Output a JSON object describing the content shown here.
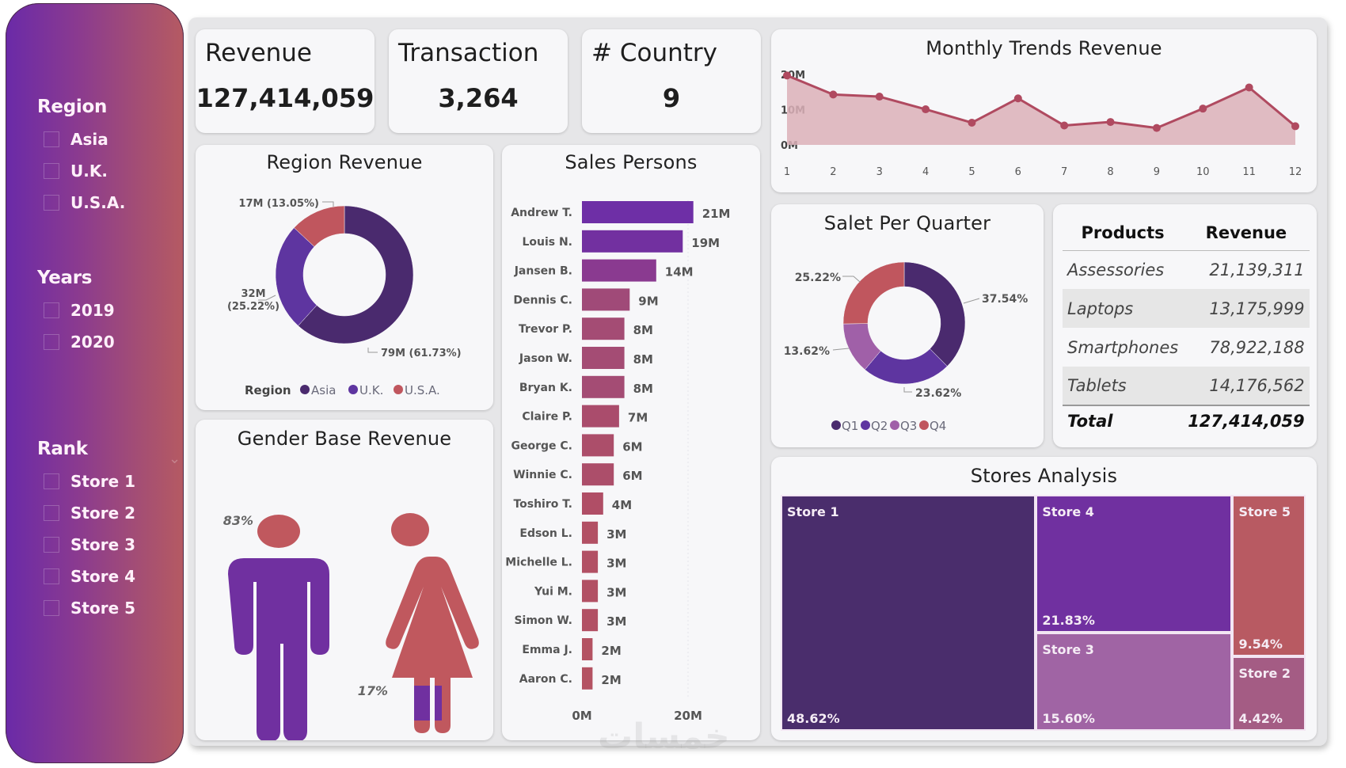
{
  "sidebar": {
    "region": {
      "title": "Region",
      "items": [
        "Asia",
        "U.K.",
        "U.S.A."
      ]
    },
    "years": {
      "title": "Years",
      "items": [
        "2019",
        "2020"
      ]
    },
    "rank": {
      "title": "Rank",
      "items": [
        "Store 1",
        "Store 2",
        "Store 3",
        "Store 4",
        "Store 5"
      ]
    }
  },
  "kpis": {
    "revenue": {
      "label": "Revenue",
      "value": "127,414,059"
    },
    "transaction": {
      "label": "Transaction",
      "value": "3,264"
    },
    "country": {
      "label": "# Country",
      "value": "9"
    }
  },
  "products_table": {
    "headers": [
      "Products",
      "Revenue"
    ],
    "rows": [
      [
        "Assessories",
        "21,139,311"
      ],
      [
        "Laptops",
        "13,175,999"
      ],
      [
        "Smartphones",
        "78,922,188"
      ],
      [
        "Tablets",
        "14,176,562"
      ]
    ],
    "total": [
      "Total",
      "127,414,059"
    ]
  },
  "colors": {
    "asia": "#4a2a6e",
    "uk": "#5e35a0",
    "usa": "#c0565e",
    "q1": "#4a2a6e",
    "q2": "#5e35a0",
    "q3": "#a060a8",
    "q4": "#c0565e",
    "line": "#b04a60",
    "area": "#dcb0b8",
    "male": "#7030a0",
    "female": "#c0585e"
  },
  "watermark": "خمسات",
  "chart_data": [
    {
      "id": "monthly",
      "type": "area",
      "title": "Monthly Trends Revenue",
      "x": [
        1,
        2,
        3,
        4,
        5,
        6,
        7,
        8,
        9,
        10,
        11,
        12
      ],
      "values": [
        19.7,
        14.3,
        13.7,
        10.1,
        6.3,
        13.2,
        5.5,
        6.5,
        4.8,
        10.3,
        16.3,
        5.3
      ],
      "unit": "M",
      "yticks": [
        "0M",
        "10M",
        "20M"
      ],
      "ylim": [
        0,
        20
      ],
      "xlabel": "",
      "ylabel": ""
    },
    {
      "id": "region",
      "type": "pie",
      "title": "Region Revenue",
      "legend_title": "Region",
      "legend_position": "bottom",
      "slices": [
        {
          "name": "Asia",
          "value": 79,
          "pct": 61.73,
          "label": "79M (61.73%)"
        },
        {
          "name": "U.K.",
          "value": 32,
          "pct": 25.22,
          "label_lines": [
            "32M",
            "(25.22%)"
          ]
        },
        {
          "name": "U.S.A.",
          "value": 17,
          "pct": 13.05,
          "label": "17M (13.05%)"
        }
      ]
    },
    {
      "id": "sales_persons",
      "type": "bar",
      "orientation": "horizontal",
      "title": "Sales Persons",
      "categories": [
        "Andrew T.",
        "Louis N.",
        "Jansen B.",
        "Dennis C.",
        "Trevor P.",
        "Jason W.",
        "Bryan K.",
        "Claire P.",
        "George C.",
        "Winnie C.",
        "Toshiro T.",
        "Edson L.",
        "Michelle L.",
        "Yui M.",
        "Simon W.",
        "Emma J.",
        "Aaron C."
      ],
      "values": [
        21,
        19,
        14,
        9,
        8,
        8,
        8,
        7,
        6,
        6,
        4,
        3,
        3,
        3,
        3,
        2,
        2
      ],
      "labels": [
        "21M",
        "19M",
        "14M",
        "9M",
        "8M",
        "8M",
        "8M",
        "7M",
        "6M",
        "6M",
        "4M",
        "3M",
        "3M",
        "3M",
        "3M",
        "2M",
        "2M"
      ],
      "xticks": [
        "0M",
        "20M"
      ],
      "xlim": [
        0,
        20
      ]
    },
    {
      "id": "quarter",
      "type": "pie",
      "title": "Salet Per Quarter",
      "legend_position": "bottom",
      "slices": [
        {
          "name": "Q1",
          "pct": 37.54,
          "label": "37.54%"
        },
        {
          "name": "Q2",
          "pct": 23.62,
          "label": "23.62%"
        },
        {
          "name": "Q3",
          "pct": 13.62,
          "label": "13.62%"
        },
        {
          "name": "Q4",
          "pct": 25.22,
          "label": "25.22%"
        }
      ]
    },
    {
      "id": "gender",
      "type": "pictogram",
      "title": "Gender Base Revenue",
      "series": [
        {
          "name": "Male",
          "pct": 83,
          "label": "83%"
        },
        {
          "name": "Female",
          "pct": 17,
          "label": "17%"
        }
      ]
    },
    {
      "id": "stores",
      "type": "treemap",
      "title": "Stores Analysis",
      "items": [
        {
          "name": "Store 1",
          "pct": 48.62,
          "label": "48.62%",
          "color": "#4a2d6c"
        },
        {
          "name": "Store 4",
          "pct": 21.83,
          "label": "21.83%",
          "color": "#7030a0"
        },
        {
          "name": "Store 3",
          "pct": 15.6,
          "label": "15.60%",
          "color": "#a064a4"
        },
        {
          "name": "Store 5",
          "pct": 9.54,
          "label": "9.54%",
          "color": "#b85a62"
        },
        {
          "name": "Store 2",
          "pct": 4.42,
          "label": "4.42%",
          "color": "#a45c84"
        }
      ]
    }
  ]
}
